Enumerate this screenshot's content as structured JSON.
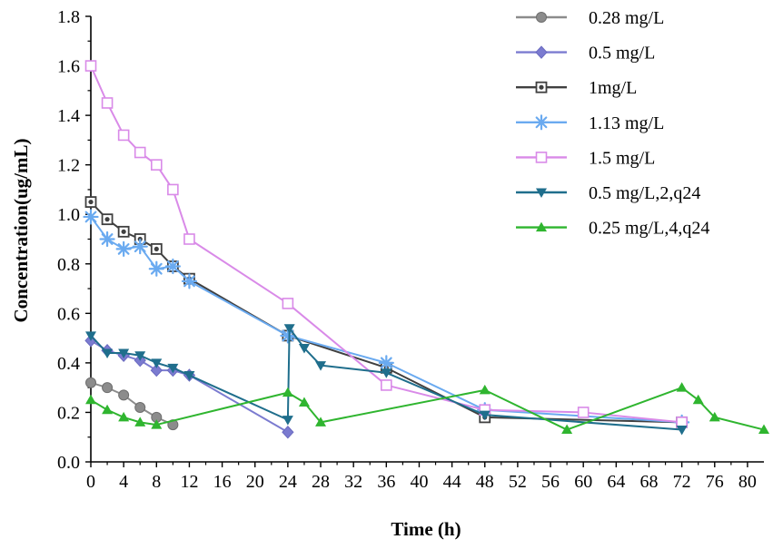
{
  "chart_data": {
    "type": "line",
    "title": "",
    "xlabel": "Time (h)",
    "ylabel": "Concentration(ug/mL)",
    "xlim": [
      0,
      82
    ],
    "ylim": [
      0,
      1.8
    ],
    "xticks": [
      0,
      4,
      8,
      12,
      16,
      20,
      24,
      28,
      32,
      36,
      40,
      44,
      48,
      52,
      56,
      60,
      64,
      68,
      72,
      76,
      80
    ],
    "xtick_labels": [
      "0",
      "4",
      "8",
      "12",
      "16",
      "20",
      "24",
      "28",
      "32",
      "36",
      "40",
      "44",
      "48",
      "52",
      "56",
      "60",
      "64",
      "68",
      "72",
      "76",
      "80"
    ],
    "yticks": [
      0.0,
      0.2,
      0.4,
      0.6,
      0.8,
      1.0,
      1.2,
      1.4,
      1.6,
      1.8
    ],
    "ytick_labels": [
      "0.0",
      "0.2",
      "0.4",
      "0.6",
      "0.8",
      "1.0",
      "1.2",
      "1.4",
      "1.6",
      "1.8"
    ],
    "grid": false,
    "legend_position": "top-right",
    "series": [
      {
        "name": "0.28 mg/L",
        "color": "#8c8c8c",
        "marker": "circle",
        "x": [
          0,
          2,
          4,
          6,
          8,
          10
        ],
        "y": [
          0.32,
          0.3,
          0.27,
          0.22,
          0.18,
          0.15
        ]
      },
      {
        "name": "0.5 mg/L",
        "color": "#7b7bd0",
        "marker": "diamond",
        "x": [
          0,
          2,
          4,
          6,
          8,
          10,
          12,
          24
        ],
        "y": [
          0.49,
          0.45,
          0.43,
          0.41,
          0.37,
          0.37,
          0.35,
          0.12
        ]
      },
      {
        "name": "1mg/L",
        "color": "#404040",
        "marker": "square-dot",
        "x": [
          0,
          2,
          4,
          6,
          8,
          10,
          12,
          24,
          36,
          48,
          72
        ],
        "y": [
          1.05,
          0.98,
          0.93,
          0.9,
          0.86,
          0.79,
          0.74,
          0.51,
          0.38,
          0.18,
          0.16
        ]
      },
      {
        "name": "1.13 mg/L",
        "color": "#6aaaf0",
        "marker": "asterisk",
        "x": [
          0,
          2,
          4,
          6,
          8,
          10,
          12,
          24,
          36,
          48,
          72
        ],
        "y": [
          0.99,
          0.9,
          0.86,
          0.87,
          0.78,
          0.79,
          0.73,
          0.51,
          0.4,
          0.21,
          0.16
        ]
      },
      {
        "name": "1.5 mg/L",
        "color": "#d98ae8",
        "marker": "square-open",
        "x": [
          0,
          2,
          4,
          6,
          8,
          10,
          12,
          24,
          36,
          48,
          60,
          72
        ],
        "y": [
          1.6,
          1.45,
          1.32,
          1.25,
          1.2,
          1.1,
          0.9,
          0.64,
          0.31,
          0.21,
          0.2,
          0.16
        ]
      },
      {
        "name": "0.5 mg/L,2,q24",
        "color": "#1f6e8c",
        "marker": "triangle-down",
        "x": [
          0,
          2,
          4,
          6,
          8,
          10,
          12,
          24,
          24.2,
          26,
          28,
          36,
          48,
          72
        ],
        "y": [
          0.51,
          0.44,
          0.44,
          0.43,
          0.4,
          0.38,
          0.35,
          0.17,
          0.54,
          0.46,
          0.39,
          0.36,
          0.19,
          0.13
        ]
      },
      {
        "name": "0.25 mg/L,4,q24",
        "color": "#2fb52f",
        "marker": "triangle-up",
        "x": [
          0,
          2,
          4,
          6,
          8,
          24,
          26,
          28,
          48,
          58,
          72,
          74,
          76,
          82
        ],
        "y": [
          0.25,
          0.21,
          0.18,
          0.16,
          0.15,
          0.28,
          0.24,
          0.16,
          0.29,
          0.13,
          0.3,
          0.25,
          0.18,
          0.13
        ]
      }
    ]
  }
}
